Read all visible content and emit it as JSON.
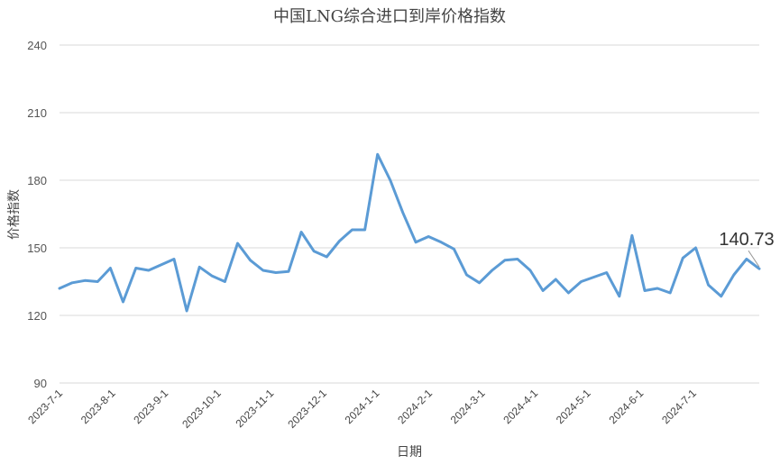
{
  "chart_data": {
    "type": "line",
    "title": "中国LNG综合进口到岸价格指数",
    "xlabel": "日期",
    "ylabel": "价格指数",
    "ylim": [
      90,
      240
    ],
    "yticks": [
      90,
      120,
      150,
      180,
      210,
      240
    ],
    "xticks": [
      "2023-7-1",
      "2023-8-1",
      "2023-9-1",
      "2023-10-1",
      "2023-11-1",
      "2023-12-1",
      "2024-1-1",
      "2024-2-1",
      "2024-3-1",
      "2024-4-1",
      "2024-5-1",
      "2024-6-1",
      "2024-7-1"
    ],
    "grid": true,
    "legend": "none",
    "series_color": "#5b9bd5",
    "series": [
      {
        "values": [
          132,
          134.5,
          135.5,
          135,
          141,
          126,
          141,
          140,
          142.5,
          145,
          122,
          141.5,
          137.5,
          135,
          152,
          144.5,
          140,
          139,
          139.5,
          157,
          148.5,
          146,
          153,
          158,
          158,
          191.5,
          180,
          165.5,
          152.5,
          155,
          152.5,
          149.5,
          138,
          134.5,
          140,
          144.5,
          145,
          140,
          131,
          136,
          130,
          135,
          137,
          139,
          128.5,
          155.5,
          131,
          132,
          130,
          145.5,
          150,
          133.5,
          128.5,
          138,
          145,
          140.73
        ]
      }
    ],
    "annotation": {
      "text": "140.73"
    }
  }
}
